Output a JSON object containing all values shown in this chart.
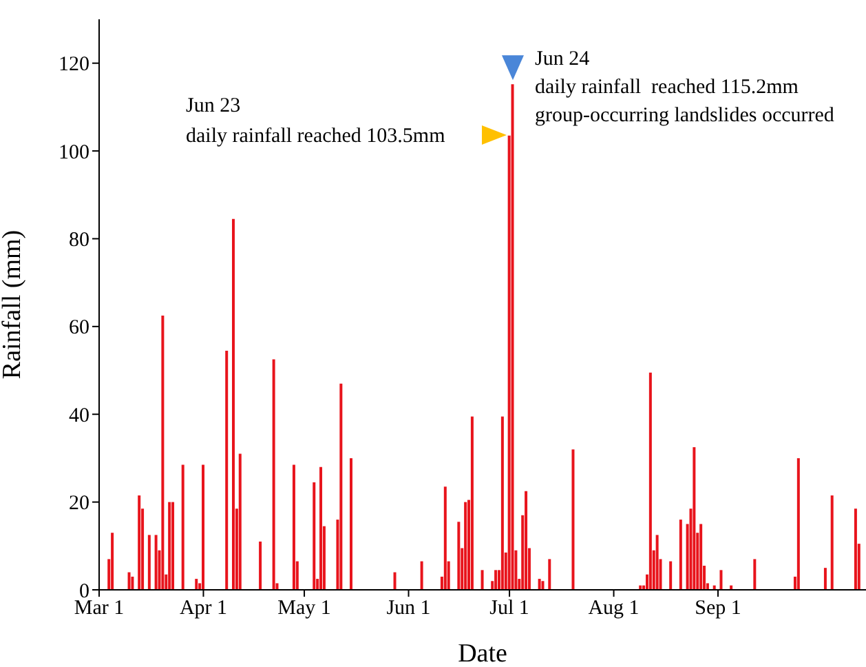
{
  "chart_data": {
    "type": "bar",
    "xlabel": "Date",
    "ylabel": "Rainfall (mm)",
    "color": "#e8141c",
    "x": [
      "--03-04",
      "--03-05",
      "--03-10",
      "--03-11",
      "--03-13",
      "--03-14",
      "--03-16",
      "--03-18",
      "--03-19",
      "--03-20",
      "--03-21",
      "--03-22",
      "--03-23",
      "--03-26",
      "--03-30",
      "--03-31",
      "--04-01",
      "--04-08",
      "--04-10",
      "--04-11",
      "--04-12",
      "--04-18",
      "--04-22",
      "--04-23",
      "--04-28",
      "--04-29",
      "--05-04",
      "--05-05",
      "--05-06",
      "--05-07",
      "--05-11",
      "--05-12",
      "--05-15",
      "--05-28",
      "--06-05",
      "--06-11",
      "--06-12",
      "--06-13",
      "--06-16",
      "--06-17",
      "--06-18",
      "--06-19",
      "--06-20",
      "--06-23",
      "--06-26",
      "--06-27",
      "--06-28",
      "--06-29",
      "--06-30",
      "--07-01",
      "--07-02",
      "--07-03",
      "--07-04",
      "--07-05",
      "--07-06",
      "--07-07",
      "--07-10",
      "--07-11",
      "--07-13",
      "--07-20",
      "--08-09",
      "--08-10",
      "--08-11",
      "--08-12",
      "--08-13",
      "--08-14",
      "--08-15",
      "--08-18",
      "--08-21",
      "--08-23",
      "--08-24",
      "--08-25",
      "--08-26",
      "--08-27",
      "--08-28",
      "--08-29",
      "--08-31",
      "--09-02",
      "--09-05",
      "--09-12",
      "--09-24",
      "--09-25",
      "--10-03",
      "--10-05",
      "--10-12",
      "--10-13"
    ],
    "values": [
      7,
      13,
      4,
      3,
      21.5,
      18.5,
      12.5,
      12.5,
      9,
      62.5,
      3.5,
      20,
      20,
      28.5,
      2.5,
      1.5,
      28.5,
      54.5,
      84.5,
      18.5,
      31,
      11,
      52.5,
      1.5,
      28.5,
      6.5,
      24.5,
      2.5,
      28,
      14.5,
      16,
      47,
      30,
      4,
      6.5,
      3,
      23.5,
      6.5,
      15.5,
      9.5,
      20,
      20.5,
      39.5,
      4.5,
      2,
      4.5,
      4.5,
      39.5,
      8.5,
      103.5,
      115.2,
      9,
      2.5,
      17,
      22.5,
      9.5,
      2.5,
      2,
      7,
      32,
      1,
      1,
      3.5,
      49.5,
      9,
      12.5,
      7,
      6.5,
      16,
      15,
      18.5,
      32.5,
      13,
      15,
      5.5,
      1.5,
      1,
      4.5,
      1,
      7,
      3,
      30,
      5,
      21.5,
      18.5,
      10.5
    ],
    "xlim": [
      "--03-01",
      "--10-15"
    ],
    "xticks": [
      {
        "value": "--03-01",
        "label": "Mar 1"
      },
      {
        "value": "--04-01",
        "label": "Apr 1"
      },
      {
        "value": "--05-01",
        "label": "May 1"
      },
      {
        "value": "--06-01",
        "label": "Jun 1"
      },
      {
        "value": "--07-01",
        "label": "Jul 1"
      },
      {
        "value": "--08-01",
        "label": "Aug 1"
      },
      {
        "value": "--09-01",
        "label": "Sep 1"
      }
    ],
    "ylim": [
      0,
      130
    ],
    "yticks": [
      0,
      20,
      40,
      60,
      80,
      100,
      120
    ],
    "annotations": [
      "Jun 23\ndaily rainfall reached 103.5mm",
      {
        "text": "Jun 24\ndaily rainfall  reached 115.2mm\ngroup-occurring landslides occurred",
        "x": "--07-02",
        "y": 115.2
      }
    ]
  }
}
